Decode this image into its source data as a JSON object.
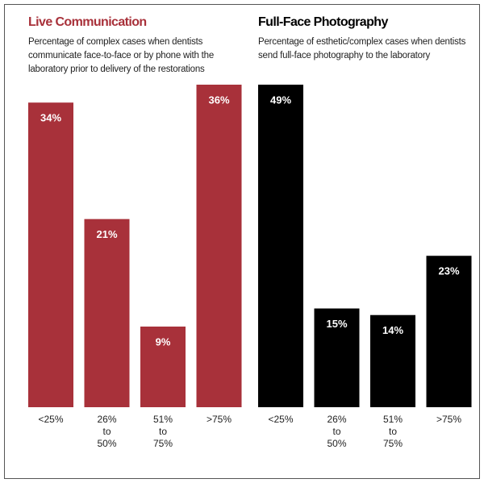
{
  "chart_data": [
    {
      "type": "bar",
      "title": "Live Communication",
      "subtitle": "Percentage of complex cases when dentists\ncommunicate face-to-face or by phone with the\nlaboratory prior to delivery of the restorations",
      "categories": [
        "<25%",
        "26%\nto\n50%",
        "51%\nto\n75%",
        ">75%"
      ],
      "values": [
        34,
        21,
        9,
        36
      ],
      "value_labels": [
        "34%",
        "21%",
        "9%",
        "36%"
      ],
      "color": "#a8313a",
      "title_color": "#a8313a"
    },
    {
      "type": "bar",
      "title": "Full-Face Photography",
      "subtitle": "Percentage of esthetic/complex cases when dentists\nsend full-face photography to the laboratory",
      "categories": [
        "<25%",
        "26%\nto\n50%",
        "51%\nto\n75%",
        ">75%"
      ],
      "values": [
        49,
        15,
        14,
        23
      ],
      "value_labels": [
        "49%",
        "15%",
        "14%",
        "23%"
      ],
      "color": "#000000",
      "title_color": "#000000"
    }
  ]
}
